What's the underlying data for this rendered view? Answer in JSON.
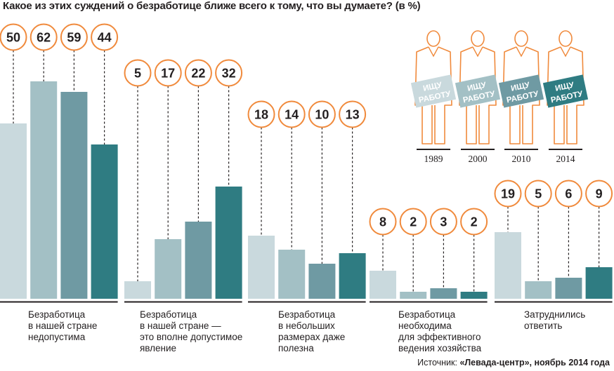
{
  "title": "Какое из этих суждений о безработице ближе всего к тому, что вы думаете? (в %)",
  "colors": [
    "#c9d9dd",
    "#a3c0c5",
    "#6f9aa3",
    "#2f7c82"
  ],
  "circle_color": "#f08a3c",
  "figure_color": "#f08a3c",
  "chart_data": {
    "type": "bar",
    "title": "Какое из этих суждений о безработице ближе всего к тому, что вы думаете? (в %)",
    "categories": [
      "Безработица\nв нашей стране\nнедопустима",
      "Безработица\nв нашей стране —\nэто вполне допустимое\nявление",
      "Безработица\nв небольших\nразмерах даже\nполезна",
      "Безработица\nнеобходима\nдля эффективного\nведения хозяйства",
      "Затруднились\nответить"
    ],
    "series": [
      {
        "name": "1989",
        "values": [
          50,
          5,
          18,
          8,
          19
        ]
      },
      {
        "name": "2000",
        "values": [
          62,
          17,
          14,
          2,
          5
        ]
      },
      {
        "name": "2010",
        "values": [
          59,
          22,
          10,
          3,
          6
        ]
      },
      {
        "name": "2014",
        "values": [
          44,
          32,
          13,
          2,
          9
        ]
      }
    ],
    "ylim": [
      0,
      64
    ]
  },
  "legend": {
    "sign_line1": "ИЩУ",
    "sign_line2": "РАБОТУ",
    "years": [
      "1989",
      "2000",
      "2010",
      "2014"
    ]
  },
  "source": {
    "prefix": "Источник: ",
    "name": "«Левада-центр», ноябрь 2014 года"
  }
}
